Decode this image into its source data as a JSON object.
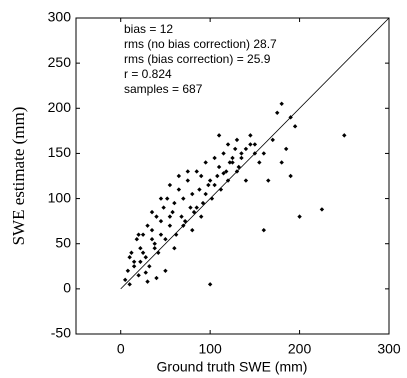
{
  "chart_data": {
    "type": "scatter",
    "xlabel": "Ground truth SWE (mm)",
    "ylabel": "SWE estimate (mm)",
    "annotations": [
      "bias = 12",
      "rms (no bias correction) 28.7",
      "rms (bias correction) = 25.9",
      "r = 0.824",
      "samples = 687"
    ],
    "xlim": [
      -50,
      300
    ],
    "ylim": [
      -50,
      300
    ],
    "xticks": [
      0,
      100,
      200,
      300
    ],
    "yticks": [
      -50,
      0,
      50,
      100,
      150,
      200,
      250,
      300
    ],
    "color": "#000000",
    "identity_line": true,
    "x": [
      5,
      8,
      10,
      12,
      15,
      18,
      20,
      22,
      25,
      28,
      30,
      32,
      35,
      38,
      40,
      42,
      45,
      48,
      50,
      52,
      55,
      58,
      60,
      62,
      65,
      68,
      70,
      72,
      75,
      78,
      80,
      82,
      85,
      88,
      90,
      92,
      95,
      98,
      100,
      102,
      105,
      108,
      110,
      112,
      115,
      118,
      120,
      122,
      125,
      128,
      130,
      132,
      135,
      140,
      145,
      150,
      160,
      170,
      180,
      190,
      200,
      225,
      250,
      160,
      175,
      185,
      195,
      100,
      110,
      60,
      50,
      40,
      30,
      20,
      10,
      15,
      25,
      35,
      45,
      55,
      65,
      75,
      85,
      95,
      105,
      115,
      125,
      135,
      145,
      155,
      165,
      180,
      190,
      120,
      130,
      70,
      80,
      90,
      140,
      150,
      35,
      45,
      55,
      22,
      28,
      38
    ],
    "values": [
      10,
      20,
      5,
      40,
      30,
      55,
      15,
      45,
      60,
      35,
      70,
      25,
      65,
      50,
      80,
      40,
      75,
      90,
      55,
      100,
      70,
      85,
      95,
      60,
      110,
      80,
      100,
      75,
      120,
      90,
      105,
      85,
      130,
      110,
      125,
      95,
      140,
      115,
      120,
      100,
      145,
      125,
      135,
      110,
      150,
      130,
      160,
      140,
      145,
      155,
      165,
      135,
      150,
      155,
      170,
      160,
      150,
      165,
      205,
      190,
      80,
      88,
      170,
      65,
      195,
      155,
      180,
      5,
      170,
      45,
      20,
      12,
      8,
      60,
      35,
      25,
      40,
      85,
      100,
      115,
      125,
      130,
      90,
      105,
      115,
      128,
      140,
      145,
      160,
      140,
      120,
      140,
      125,
      120,
      130,
      70,
      65,
      80,
      120,
      150,
      55,
      60,
      80,
      30,
      18,
      45
    ]
  }
}
